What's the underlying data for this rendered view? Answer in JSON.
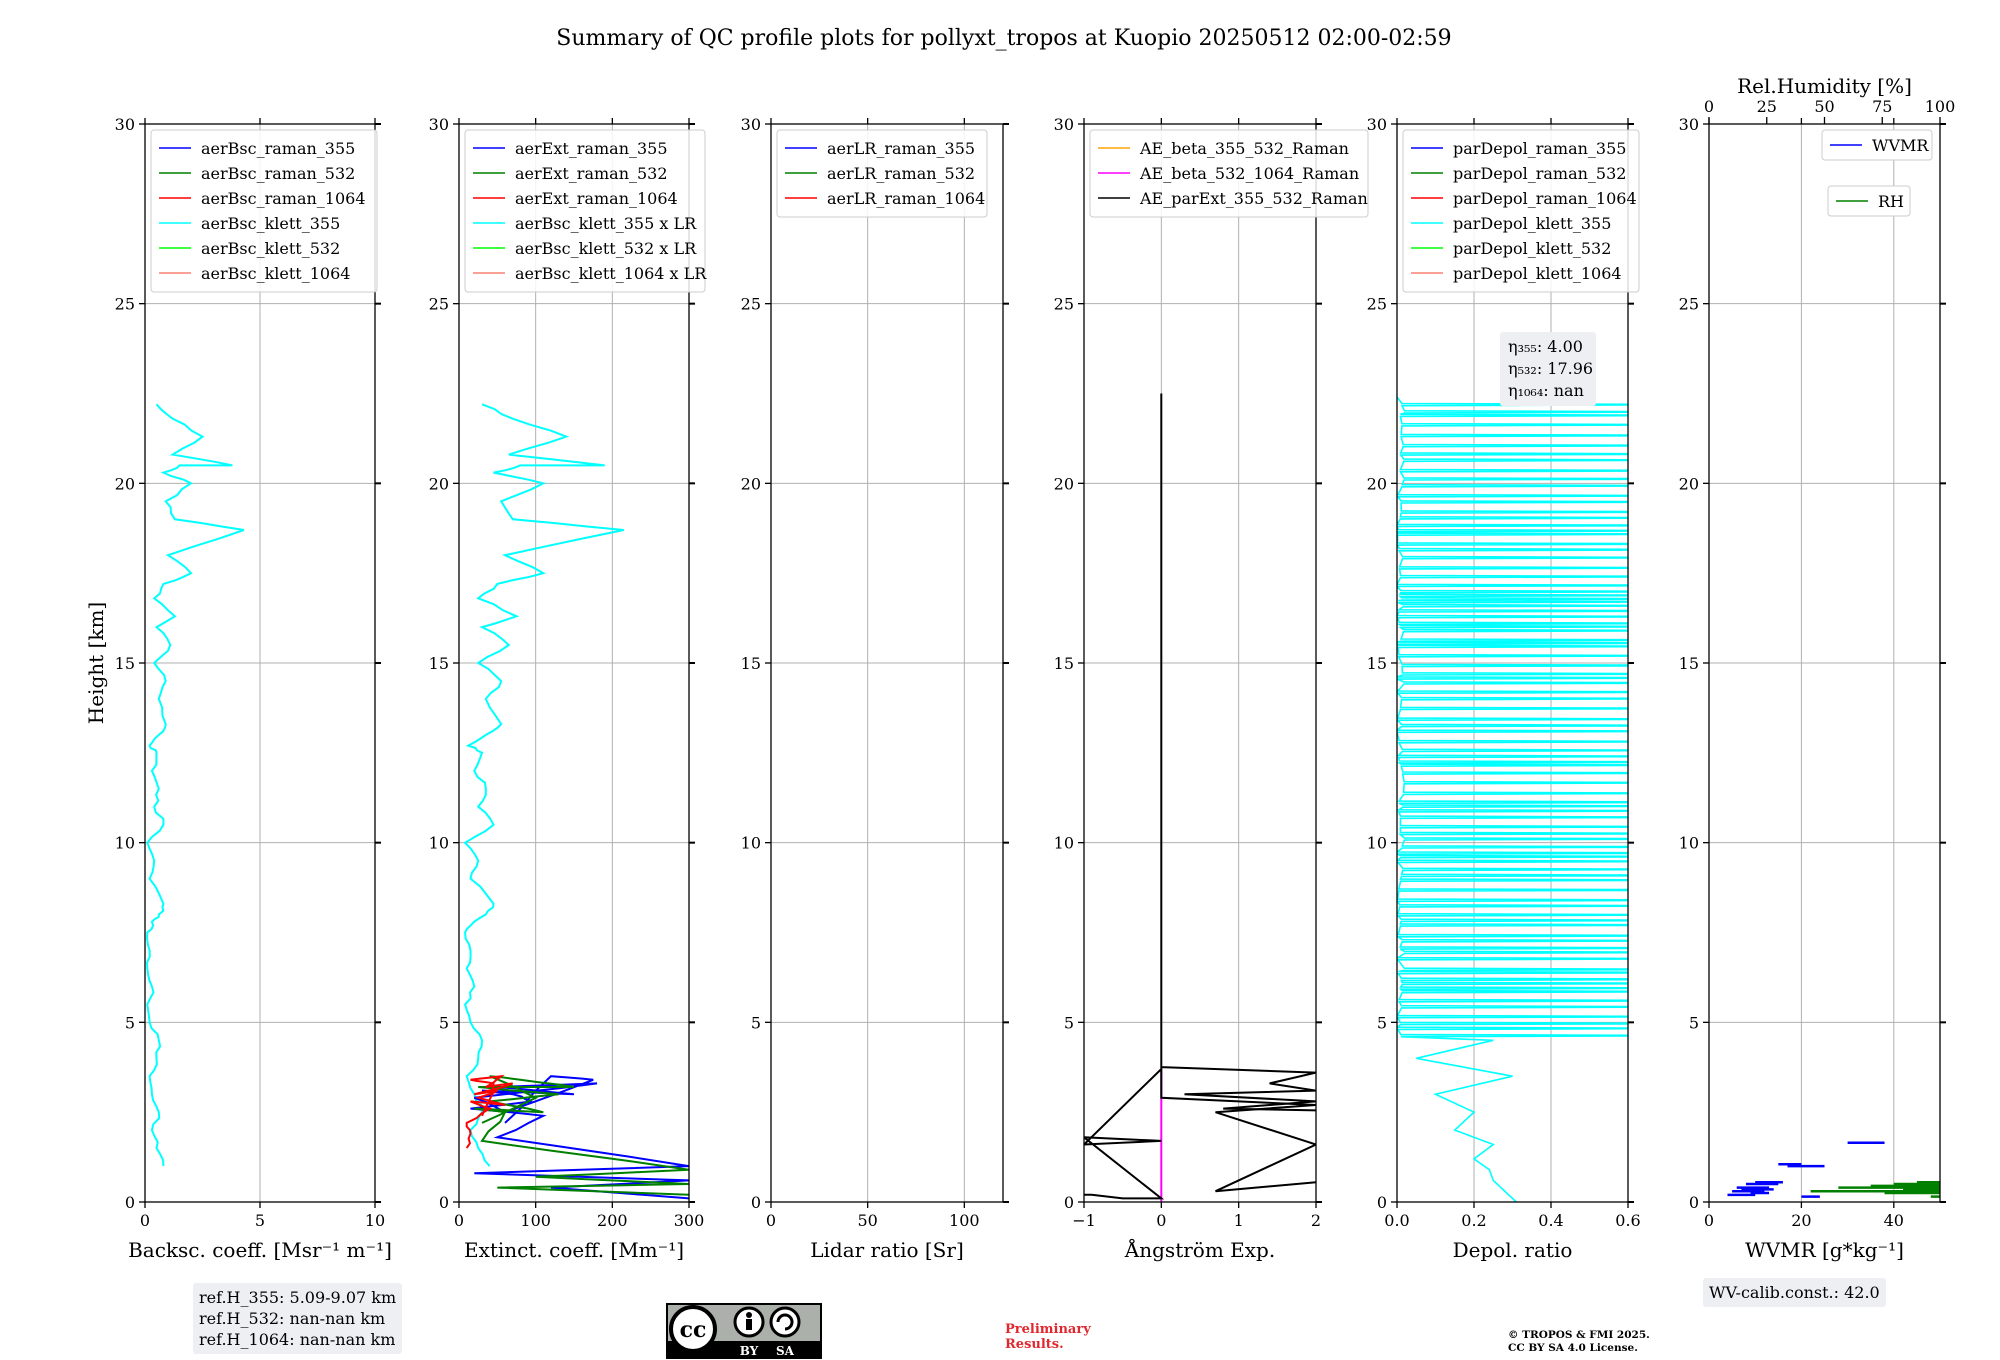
{
  "figure": {
    "title": "Summary of QC profile plots for pollyxt_tropos at Kuopio 20250512 02:00-02:59",
    "preliminary": [
      "Preliminary",
      "Results."
    ],
    "copyright": [
      "© TROPOS & FMI 2025.",
      "CC BY SA 4.0 License."
    ],
    "cc_badge": [
      "cc",
      "BY",
      "SA"
    ],
    "colors": {
      "blue": "#0000ff",
      "green": "#008000",
      "red": "#ff0000",
      "cyan": "#00ffff",
      "lime": "#00ff00",
      "salmon": "#fa8072",
      "orange": "#ffa500",
      "magenta": "#ff00ff",
      "black": "#000000",
      "grid": "#b0b0b0"
    }
  },
  "chart_data": [
    {
      "type": "line",
      "id": "bsc",
      "xlabel": "Backsc. coeff. [Msr⁻¹ m⁻¹]",
      "ylabel": "Height [km]",
      "xlim": [
        0,
        10
      ],
      "ylim": [
        0,
        30
      ],
      "xticks": [
        0,
        5,
        10
      ],
      "yticks": [
        0,
        5,
        10,
        15,
        20,
        25,
        30
      ],
      "grid": true,
      "legend": {
        "position": "top-left",
        "entries": [
          {
            "label": "aerBsc_raman_355",
            "color": "blue"
          },
          {
            "label": "aerBsc_raman_532",
            "color": "green"
          },
          {
            "label": "aerBsc_raman_1064",
            "color": "red"
          },
          {
            "label": "aerBsc_klett_355",
            "color": "cyan"
          },
          {
            "label": "aerBsc_klett_532",
            "color": "lime"
          },
          {
            "label": "aerBsc_klett_1064",
            "color": "salmon"
          }
        ]
      },
      "annotation": [
        "ref.H_355: 5.09-9.07 km",
        "ref.H_532: nan-nan km",
        "ref.H_1064: nan-nan km"
      ],
      "series": [
        {
          "name": "aerBsc_klett_355",
          "color": "cyan",
          "noisy": true,
          "x": [
            0.8,
            0.5,
            0.3,
            0.6,
            0.3,
            0.2,
            0.5,
            0.6,
            0.2,
            0.1,
            0.3,
            0.1,
            0.2,
            0.1,
            0.3,
            0.6,
            0.8,
            0.2,
            0.4,
            0.1,
            0.8,
            0.4,
            0.6,
            0.3,
            0.5,
            0.2,
            0.6,
            0.9,
            0.6,
            0.9,
            0.4,
            1.1,
            0.5,
            1.3,
            0.4,
            0.8,
            2.0,
            1.0,
            4.3,
            1.3,
            0.9,
            2.0,
            0.8,
            1.5,
            3.8,
            1.2,
            2.5,
            1.2,
            0.5
          ],
          "y": [
            1.0,
            1.5,
            2.0,
            2.5,
            3.0,
            3.5,
            4.0,
            4.5,
            5.0,
            5.5,
            6.0,
            6.5,
            7.0,
            7.5,
            7.8,
            8.0,
            8.3,
            9.0,
            9.5,
            10.0,
            10.5,
            11.0,
            11.5,
            12.0,
            12.5,
            12.7,
            13.0,
            13.3,
            14.0,
            14.5,
            15.0,
            15.5,
            16.0,
            16.3,
            16.8,
            17.2,
            17.5,
            18.0,
            18.7,
            19.0,
            19.5,
            20.0,
            20.3,
            20.5,
            20.5,
            20.8,
            21.3,
            21.8,
            22.2
          ]
        }
      ]
    },
    {
      "type": "line",
      "id": "ext",
      "xlabel": "Extinct. coeff. [Mm⁻¹]",
      "xlim": [
        0,
        300
      ],
      "ylim": [
        0,
        30
      ],
      "xticks": [
        0,
        100,
        200,
        300
      ],
      "yticks": [
        0,
        5,
        10,
        15,
        20,
        25,
        30
      ],
      "grid": true,
      "legend": {
        "position": "top-left",
        "entries": [
          {
            "label": "aerExt_raman_355",
            "color": "blue"
          },
          {
            "label": "aerExt_raman_532",
            "color": "green"
          },
          {
            "label": "aerExt_raman_1064",
            "color": "red"
          },
          {
            "label": "aerBsc_klett_355 x LR",
            "color": "cyan"
          },
          {
            "label": "aerBsc_klett_532 x LR",
            "color": "lime"
          },
          {
            "label": "aerBsc_klett_1064 x LR",
            "color": "salmon"
          }
        ]
      },
      "series": [
        {
          "name": "aerBsc_klett_355 x LR",
          "color": "cyan",
          "noisy": true,
          "x": [
            40,
            25,
            15,
            30,
            20,
            10,
            25,
            30,
            15,
            8,
            20,
            10,
            15,
            8,
            20,
            35,
            45,
            15,
            25,
            8,
            45,
            25,
            35,
            20,
            30,
            12,
            35,
            55,
            35,
            55,
            25,
            65,
            30,
            75,
            25,
            50,
            110,
            60,
            215,
            70,
            55,
            110,
            45,
            80,
            190,
            65,
            140,
            70,
            30
          ],
          "y": [
            1.0,
            1.5,
            2.0,
            2.5,
            3.0,
            3.5,
            4.0,
            4.5,
            5.0,
            5.5,
            6.0,
            6.5,
            7.0,
            7.5,
            7.8,
            8.0,
            8.3,
            9.0,
            9.5,
            10.0,
            10.5,
            11.0,
            11.5,
            12.0,
            12.5,
            12.7,
            13.0,
            13.3,
            14.0,
            14.5,
            15.0,
            15.5,
            16.0,
            16.3,
            16.8,
            17.2,
            17.5,
            18.0,
            18.7,
            19.0,
            19.5,
            20.0,
            20.3,
            20.5,
            20.5,
            20.8,
            21.3,
            21.8,
            22.2
          ]
        },
        {
          "name": "aerExt_raman_355",
          "color": "blue",
          "noisy": true,
          "x": [
            300,
            120,
            300,
            20,
            300,
            50,
            110,
            15,
            95,
            70,
            30,
            150,
            50,
            180,
            20,
            60,
            175,
            120,
            60
          ],
          "y": [
            0.1,
            0.4,
            0.6,
            0.8,
            1.0,
            1.8,
            2.4,
            2.6,
            2.8,
            3.0,
            3.1,
            3.0,
            3.2,
            3.3,
            2.9,
            2.5,
            3.4,
            3.5,
            2.2
          ]
        },
        {
          "name": "aerExt_raman_532",
          "color": "green",
          "noisy": true,
          "x": [
            300,
            50,
            300,
            100,
            300,
            30,
            60,
            20,
            110,
            40,
            130,
            70,
            25,
            150,
            80,
            40,
            100,
            30
          ],
          "y": [
            0.2,
            0.4,
            0.5,
            0.7,
            0.9,
            1.7,
            2.5,
            2.6,
            2.5,
            2.8,
            3.0,
            3.1,
            3.2,
            3.2,
            3.4,
            3.5,
            2.9,
            2.2
          ]
        },
        {
          "name": "aerExt_raman_1064",
          "color": "red",
          "noisy": true,
          "x": [
            10,
            15,
            10,
            40,
            15,
            60,
            25,
            50,
            20,
            70,
            35,
            55,
            15,
            45,
            30
          ],
          "y": [
            1.5,
            1.9,
            2.2,
            2.6,
            2.8,
            2.7,
            2.9,
            3.1,
            3.0,
            3.3,
            3.2,
            3.5,
            3.4,
            3.3,
            2.4
          ]
        }
      ]
    },
    {
      "type": "line",
      "id": "lr",
      "xlabel": "Lidar ratio [Sr]",
      "xlim": [
        0,
        120
      ],
      "ylim": [
        0,
        30
      ],
      "xticks": [
        0,
        50,
        100
      ],
      "yticks": [
        0,
        5,
        10,
        15,
        20,
        25,
        30
      ],
      "grid": true,
      "legend": {
        "position": "top-left",
        "entries": [
          {
            "label": "aerLR_raman_355",
            "color": "blue"
          },
          {
            "label": "aerLR_raman_532",
            "color": "green"
          },
          {
            "label": "aerLR_raman_1064",
            "color": "red"
          }
        ]
      },
      "series": []
    },
    {
      "type": "line",
      "id": "ang",
      "xlabel": "Ångström Exp.",
      "xlim": [
        -1,
        2
      ],
      "ylim": [
        0,
        30
      ],
      "xticks": [
        -1,
        0,
        1,
        2
      ],
      "yticks": [
        0,
        5,
        10,
        15,
        20,
        25,
        30
      ],
      "grid": true,
      "legend": {
        "position": "top-left",
        "entries": [
          {
            "label": "AE_beta_355_532_Raman",
            "color": "orange"
          },
          {
            "label": "AE_beta_532_1064_Raman",
            "color": "magenta"
          },
          {
            "label": "AE_parExt_355_532_Raman",
            "color": "black"
          }
        ]
      },
      "series": [
        {
          "name": "AE_beta_532_1064_Raman",
          "color": "magenta",
          "x": [
            0,
            0
          ],
          "y": [
            0,
            3.7
          ]
        },
        {
          "name": "AE_parExt_355_532_Raman",
          "color": "black",
          "x": [
            2.0,
            0.7,
            2.0,
            0.7,
            2.0,
            0.0,
            0.0,
            -1.0,
            0.0,
            -1.0,
            0.0,
            -0.5,
            -0.9,
            -1.0
          ],
          "y": [
            0.55,
            0.3,
            1.6,
            2.5,
            2.7,
            2.9,
            3.7,
            1.6,
            1.7,
            1.8,
            0.1,
            0.1,
            0.2,
            0.2
          ]
        },
        {
          "name": "AE_parExt_355_532_Raman (upper)",
          "color": "black",
          "x": [
            0,
            0,
            0.05,
            2.0,
            1.4,
            2.0,
            0.3,
            2.0,
            0.8,
            2.0
          ],
          "y": [
            22.5,
            3.75,
            3.75,
            3.6,
            3.3,
            3.1,
            3.0,
            2.8,
            2.6,
            2.55
          ]
        }
      ]
    },
    {
      "type": "line",
      "id": "depol",
      "xlabel": "Depol. ratio",
      "xlim": [
        0.0,
        0.6
      ],
      "ylim": [
        0,
        30
      ],
      "xticks": [
        0.0,
        0.2,
        0.4,
        0.6
      ],
      "yticks": [
        0,
        5,
        10,
        15,
        20,
        25,
        30
      ],
      "grid": true,
      "legend": {
        "position": "top-left",
        "entries": [
          {
            "label": "parDepol_raman_355",
            "color": "blue"
          },
          {
            "label": "parDepol_raman_532",
            "color": "green"
          },
          {
            "label": "parDepol_raman_1064",
            "color": "red"
          },
          {
            "label": "parDepol_klett_355",
            "color": "cyan"
          },
          {
            "label": "parDepol_klett_532",
            "color": "lime"
          },
          {
            "label": "parDepol_klett_1064",
            "color": "salmon"
          }
        ]
      },
      "annotation": [
        "η₃₅₅: 4.00",
        "η₅₃₂: 17.96",
        "η₁₀₆₄: nan"
      ],
      "series": [
        {
          "name": "parDepol_klett_355",
          "color": "cyan",
          "dense": true,
          "x": [
            0.31,
            0.28,
            0.25,
            0.24,
            0.2,
            0.25,
            0.15,
            0.2,
            0.1,
            0.3,
            0.05,
            0.25
          ],
          "y": [
            0.0,
            0.3,
            0.6,
            0.9,
            1.2,
            1.6,
            2.0,
            2.5,
            3.0,
            3.5,
            4.0,
            4.5
          ]
        }
      ]
    },
    {
      "type": "line",
      "id": "wv",
      "xlabel": "WVMR [g*kg⁻¹]",
      "xlabel_top": "Rel.Humidity [%]",
      "xlim": [
        0,
        50
      ],
      "xlim_top": [
        0,
        100
      ],
      "ylim": [
        0,
        30
      ],
      "xticks": [
        0,
        20,
        40
      ],
      "xticks_top": [
        0,
        25,
        50,
        75,
        100
      ],
      "yticks": [
        0,
        5,
        10,
        15,
        20,
        25,
        30
      ],
      "grid": true,
      "legend": {
        "position": "top-right",
        "entries": [
          {
            "label": "WVMR",
            "color": "blue"
          },
          {
            "label": "RH",
            "color": "green"
          }
        ]
      },
      "annotation": [
        "WV-calib.const.: 42.0"
      ],
      "series": [
        {
          "name": "WVMR",
          "color": "blue",
          "segments": true,
          "x": [
            4,
            10,
            5,
            12,
            6,
            13,
            8,
            15,
            10,
            16,
            7,
            14,
            9,
            13,
            30,
            38,
            15,
            20,
            17,
            25,
            20,
            24
          ],
          "y": [
            0.2,
            0.2,
            0.3,
            0.3,
            0.4,
            0.4,
            0.5,
            0.5,
            0.55,
            0.55,
            0.35,
            0.35,
            0.25,
            0.25,
            1.65,
            1.65,
            1.05,
            1.05,
            1.0,
            1.0,
            0.15,
            0.15
          ]
        },
        {
          "name": "RH",
          "color": "green",
          "segments": true,
          "x": [
            22,
            50,
            28,
            50,
            35,
            50,
            40,
            50,
            45,
            50,
            42,
            50,
            38,
            50,
            48,
            50
          ],
          "y": [
            0.3,
            0.3,
            0.4,
            0.4,
            0.45,
            0.45,
            0.5,
            0.5,
            0.55,
            0.55,
            0.35,
            0.35,
            0.25,
            0.25,
            0.15,
            0.15
          ]
        }
      ]
    }
  ]
}
